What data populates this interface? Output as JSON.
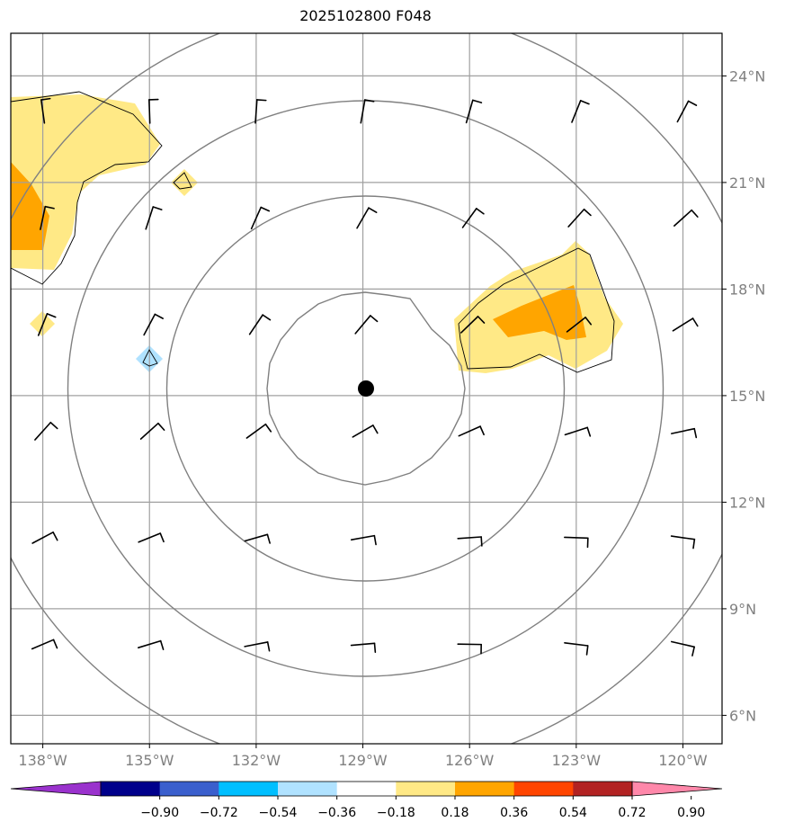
{
  "title": "2025102800 F048",
  "map": {
    "lon_ticks": [
      {
        "value": -138,
        "label": "138°W"
      },
      {
        "value": -135,
        "label": "135°W"
      },
      {
        "value": -132,
        "label": "132°W"
      },
      {
        "value": -129,
        "label": "129°W"
      },
      {
        "value": -126,
        "label": "126°W"
      },
      {
        "value": -123,
        "label": "123°W"
      },
      {
        "value": -120,
        "label": "120°W"
      }
    ],
    "lat_ticks": [
      {
        "value": 24,
        "label": "24°N"
      },
      {
        "value": 21,
        "label": "21°N"
      },
      {
        "value": 18,
        "label": "18°N"
      },
      {
        "value": 15,
        "label": "15°N"
      },
      {
        "value": 12,
        "label": "12°N"
      },
      {
        "value": 9,
        "label": "9°N"
      },
      {
        "value": 6,
        "label": "6°N"
      }
    ],
    "extent": {
      "lon_min": -138.9,
      "lon_max": -118.9,
      "lat_min": 5.2,
      "lat_max": 25.2
    },
    "center": {
      "lon": -128.9,
      "lat": 15.2
    },
    "range_rings_deg": [
      2.8,
      5.6,
      8.4,
      11.2
    ],
    "colors": {
      "grid": "#a0a0a0",
      "ring": "#808080",
      "frame": "#000000",
      "center_marker": "#000000",
      "barb": "#000000"
    }
  },
  "colorbar": {
    "colors": [
      "#9a32cd",
      "#00008b",
      "#3a5fcd",
      "#00bfff",
      "#b0e2ff",
      "#ffffff",
      "#ffe986",
      "#ffa500",
      "#ff4500",
      "#b22222",
      "#ff88aa"
    ],
    "tick_labels": [
      "−0.90",
      "−0.72",
      "−0.54",
      "−0.36",
      "−0.18",
      "0.18",
      "0.36",
      "0.54",
      "0.72",
      "0.90"
    ]
  }
}
